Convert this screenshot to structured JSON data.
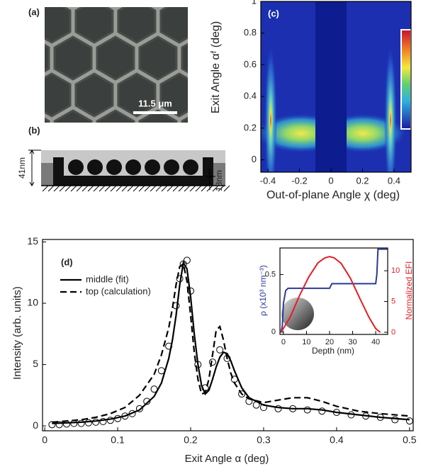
{
  "figure": {
    "panel_labels": [
      "(a)",
      "(b)",
      "(c)",
      "(d)"
    ],
    "scale_bar": "11.5 μm",
    "thickness_labels": [
      "41nm",
      "18nm"
    ]
  },
  "chart_data": [
    {
      "type": "heatmap",
      "xlabel": "Out-of-plane Angle  χ (deg)",
      "ylabel": "Exit Angle αᶠ (deg)",
      "xlim": [
        -0.445,
        0.508
      ],
      "xticks": [
        -0.4,
        -0.2,
        0,
        0.2,
        0.4
      ],
      "ylim": [
        -0.078,
        1.0
      ],
      "yticks": [
        0,
        0.2,
        0.4,
        0.6,
        0.8,
        1
      ]
    },
    {
      "type": "line",
      "xlabel": "Exit Angle α  (deg)",
      "ylabel": "Intensity (arb. units)",
      "xlim": [
        -0.003,
        0.505
      ],
      "xticks": [
        0,
        0.1,
        0.2,
        0.3,
        0.4,
        0.5
      ],
      "ylim": [
        -0.4,
        15.2
      ],
      "yticks": [
        0,
        5,
        10,
        15
      ],
      "legend": "upper left",
      "x": [
        0.01,
        0.03,
        0.05,
        0.07,
        0.09,
        0.11,
        0.13,
        0.15,
        0.16,
        0.17,
        0.175,
        0.18,
        0.185,
        0.19,
        0.195,
        0.2,
        0.205,
        0.21,
        0.215,
        0.22,
        0.225,
        0.23,
        0.235,
        0.24,
        0.245,
        0.25,
        0.255,
        0.26,
        0.27,
        0.28,
        0.3,
        0.32,
        0.34,
        0.36,
        0.38,
        0.4,
        0.43,
        0.46,
        0.5
      ],
      "series": [
        {
          "name": "middle (fit)",
          "color": "#000000",
          "style": "solid",
          "values": [
            0.2,
            0.25,
            0.3,
            0.4,
            0.55,
            0.8,
            1.3,
            2.4,
            3.5,
            5.5,
            7.0,
            9.0,
            11.5,
            13.3,
            12.8,
            10.5,
            7.5,
            5.0,
            3.3,
            2.6,
            2.9,
            3.8,
            4.8,
            5.6,
            6.0,
            5.9,
            5.3,
            4.5,
            3.1,
            2.3,
            1.7,
            1.5,
            1.4,
            1.4,
            1.3,
            1.1,
            0.9,
            0.7,
            0.5
          ]
        },
        {
          "name": "top (calculation)",
          "color": "#000000",
          "style": "dashed",
          "values": [
            0.3,
            0.4,
            0.5,
            0.7,
            1.0,
            1.5,
            2.5,
            4.2,
            5.8,
            8.0,
            9.6,
            11.5,
            13.0,
            13.2,
            11.8,
            9.0,
            6.0,
            3.8,
            2.6,
            2.7,
            3.8,
            5.8,
            7.8,
            8.1,
            7.0,
            5.5,
            4.3,
            3.5,
            2.6,
            2.2,
            1.9,
            2.1,
            2.3,
            2.3,
            2.0,
            1.6,
            1.2,
            1.0,
            0.8
          ]
        },
        {
          "color": "#000000",
          "style": "markers",
          "x": [
            0.01,
            0.02,
            0.03,
            0.04,
            0.05,
            0.06,
            0.07,
            0.08,
            0.09,
            0.1,
            0.11,
            0.12,
            0.13,
            0.14,
            0.15,
            0.16,
            0.17,
            0.18,
            0.185,
            0.19,
            0.195,
            0.2,
            0.21,
            0.22,
            0.23,
            0.24,
            0.25,
            0.26,
            0.27,
            0.28,
            0.29,
            0.3,
            0.32,
            0.34,
            0.36,
            0.38,
            0.4,
            0.42,
            0.44,
            0.46,
            0.48,
            0.5
          ],
          "values": [
            0.1,
            0.1,
            0.15,
            0.2,
            0.2,
            0.25,
            0.3,
            0.35,
            0.45,
            0.6,
            0.8,
            1.0,
            1.4,
            2.0,
            3.0,
            4.5,
            6.5,
            9.8,
            12.0,
            13.2,
            13.5,
            11.0,
            5.0,
            3.1,
            5.2,
            6.2,
            5.5,
            3.8,
            2.6,
            2.0,
            1.7,
            1.5,
            1.4,
            1.4,
            1.3,
            1.2,
            1.1,
            0.9,
            0.8,
            0.7,
            0.5,
            0.4
          ]
        }
      ]
    },
    {
      "type": "line",
      "xlabel": "Depth (nm)",
      "ylabel": "ρ (x10³ nm⁻³)",
      "y2label": "Normalized EFI",
      "xlim": [
        -1.5,
        45.2
      ],
      "xticks": [
        0,
        10,
        20,
        30,
        40
      ],
      "ylim": [
        -0.02,
        0.73
      ],
      "yticks": [
        0,
        0.5
      ],
      "y2lim": [
        -0.35,
        13.7
      ],
      "y2ticks": [
        0,
        5,
        10
      ],
      "series": [
        {
          "color": "#2b3a9b",
          "style": "solid",
          "x": [
            -1,
            -0.5,
            0,
            1,
            2,
            4,
            20,
            20.5,
            21,
            40,
            40.5,
            41,
            45
          ],
          "values": [
            0,
            0.05,
            0.25,
            0.36,
            0.38,
            0.38,
            0.38,
            0.4,
            0.42,
            0.42,
            0.5,
            0.72,
            0.72
          ]
        },
        {
          "color": "#e31e24",
          "style": "solid",
          "axis": "y2",
          "x": [
            -1,
            3,
            7,
            11,
            15,
            18,
            20,
            22,
            25,
            29,
            33,
            37,
            40,
            42
          ],
          "values": [
            0,
            2.5,
            6,
            9,
            11.3,
            12.1,
            12.3,
            12.1,
            11.2,
            8.8,
            5.6,
            2.5,
            0.6,
            0
          ]
        }
      ]
    }
  ]
}
